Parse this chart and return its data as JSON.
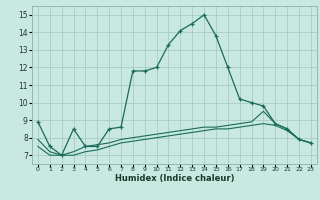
{
  "xlabel": "Humidex (Indice chaleur)",
  "background_color": "#c8e8e0",
  "grid_color": "#a8ccc4",
  "line_color": "#1a6b5a",
  "xlim": [
    -0.5,
    23.5
  ],
  "ylim": [
    6.5,
    15.5
  ],
  "xticks": [
    0,
    1,
    2,
    3,
    4,
    5,
    6,
    7,
    8,
    9,
    10,
    11,
    12,
    13,
    14,
    15,
    16,
    17,
    18,
    19,
    20,
    21,
    22,
    23
  ],
  "yticks": [
    7,
    8,
    9,
    10,
    11,
    12,
    13,
    14,
    15
  ],
  "line1_x": [
    0,
    1,
    2,
    3,
    4,
    5,
    6,
    7,
    8,
    9,
    10,
    11,
    12,
    13,
    14,
    15,
    16,
    17,
    18,
    19,
    20,
    21,
    22,
    23
  ],
  "line1_y": [
    8.9,
    7.5,
    7.0,
    8.5,
    7.5,
    7.5,
    8.5,
    8.6,
    11.8,
    11.8,
    12.0,
    13.3,
    14.1,
    14.5,
    15.0,
    13.8,
    12.0,
    10.2,
    10.0,
    9.8,
    8.8,
    8.5,
    7.9,
    7.7
  ],
  "line2_x": [
    0,
    1,
    2,
    3,
    4,
    5,
    6,
    7,
    8,
    9,
    10,
    11,
    12,
    13,
    14,
    15,
    16,
    17,
    18,
    19,
    20,
    21,
    22,
    23
  ],
  "line2_y": [
    7.9,
    7.2,
    7.0,
    7.2,
    7.5,
    7.6,
    7.7,
    7.9,
    8.0,
    8.1,
    8.2,
    8.3,
    8.4,
    8.5,
    8.6,
    8.6,
    8.7,
    8.8,
    8.9,
    9.5,
    8.8,
    8.5,
    7.9,
    7.7
  ],
  "line3_x": [
    0,
    1,
    2,
    3,
    4,
    5,
    6,
    7,
    8,
    9,
    10,
    11,
    12,
    13,
    14,
    15,
    16,
    17,
    18,
    19,
    20,
    21,
    22,
    23
  ],
  "line3_y": [
    7.5,
    7.0,
    7.0,
    7.0,
    7.2,
    7.3,
    7.5,
    7.7,
    7.8,
    7.9,
    8.0,
    8.1,
    8.2,
    8.3,
    8.4,
    8.5,
    8.5,
    8.6,
    8.7,
    8.8,
    8.7,
    8.4,
    7.9,
    7.7
  ]
}
